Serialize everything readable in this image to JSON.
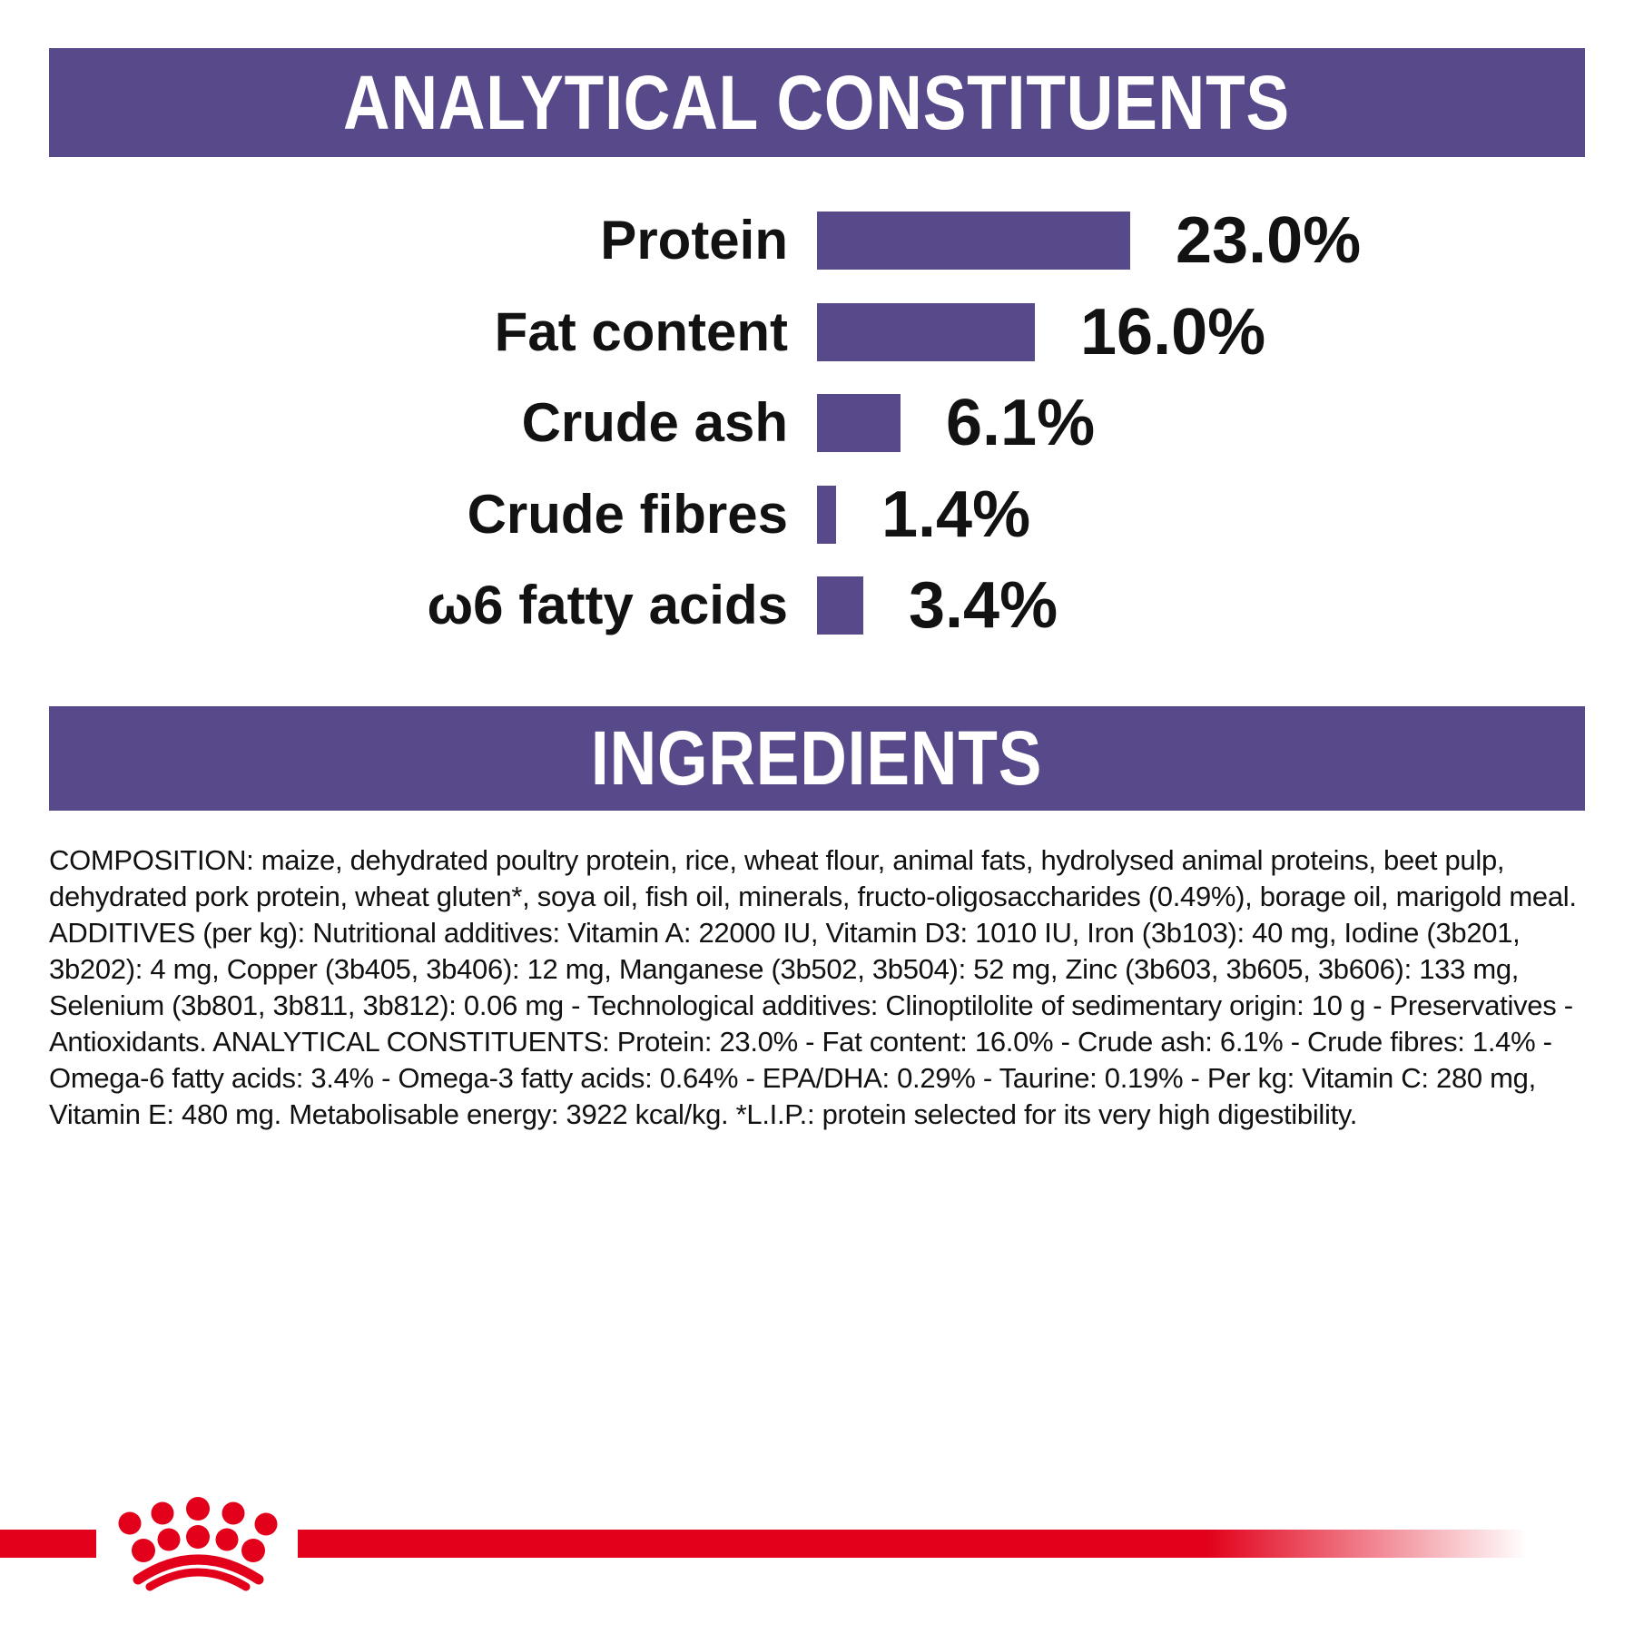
{
  "sections": {
    "analytical": {
      "title": "ANALYTICAL CONSTITUENTS"
    },
    "ingredients": {
      "title": "INGREDIENTS"
    }
  },
  "chart_data": {
    "type": "bar",
    "orientation": "horizontal",
    "categories": [
      "Protein",
      "Fat content",
      "Crude ash",
      "Crude fibres",
      "ω6 fatty acids"
    ],
    "values": [
      23.0,
      16.0,
      6.1,
      1.4,
      3.4
    ],
    "value_labels": [
      "23.0%",
      "16.0%",
      "6.1%",
      "1.4%",
      "3.4%"
    ],
    "unit": "%",
    "xlim": [
      0,
      25
    ],
    "bar_color": "#57498A",
    "grid": false,
    "legend": false
  },
  "composition": {
    "text": "COMPOSITION: maize, dehydrated poultry protein, rice, wheat flour, animal fats, hydrolysed animal proteins, beet pulp, dehydrated pork protein, wheat gluten*, soya oil, fish oil, minerals, fructo-oligosaccharides (0.49%), borage oil, marigold meal. ADDITIVES (per kg): Nutritional additives: Vitamin A: 22000 IU, Vitamin D3: 1010 IU, Iron (3b103): 40 mg, Iodine (3b201, 3b202): 4 mg, Copper (3b405, 3b406): 12 mg, Manganese (3b502, 3b504): 52 mg, Zinc (3b603, 3b605, 3b606): 133 mg, Selenium (3b801, 3b811, 3b812): 0.06 mg - Technological additives: Clinoptilolite of sedimentary origin: 10 g - Preservatives - Antioxidants. ANALYTICAL CONSTITUENTS: Protein: 23.0% - Fat content: 16.0% - Crude ash: 6.1% - Crude fibres: 1.4% - Omega-6 fatty acids: 3.4% - Omega-3 fatty acids: 0.64% - EPA/DHA: 0.29% - Taurine: 0.19% - Per kg: Vitamin C: 280 mg, Vitamin E: 480 mg. Metabolisable energy: 3922 kcal/kg. *L.I.P.: protein selected for its very high digestibility."
  },
  "brand": {
    "logo_name": "royal-canin-crown",
    "red": "#E2001A",
    "purple": "#57498A"
  }
}
